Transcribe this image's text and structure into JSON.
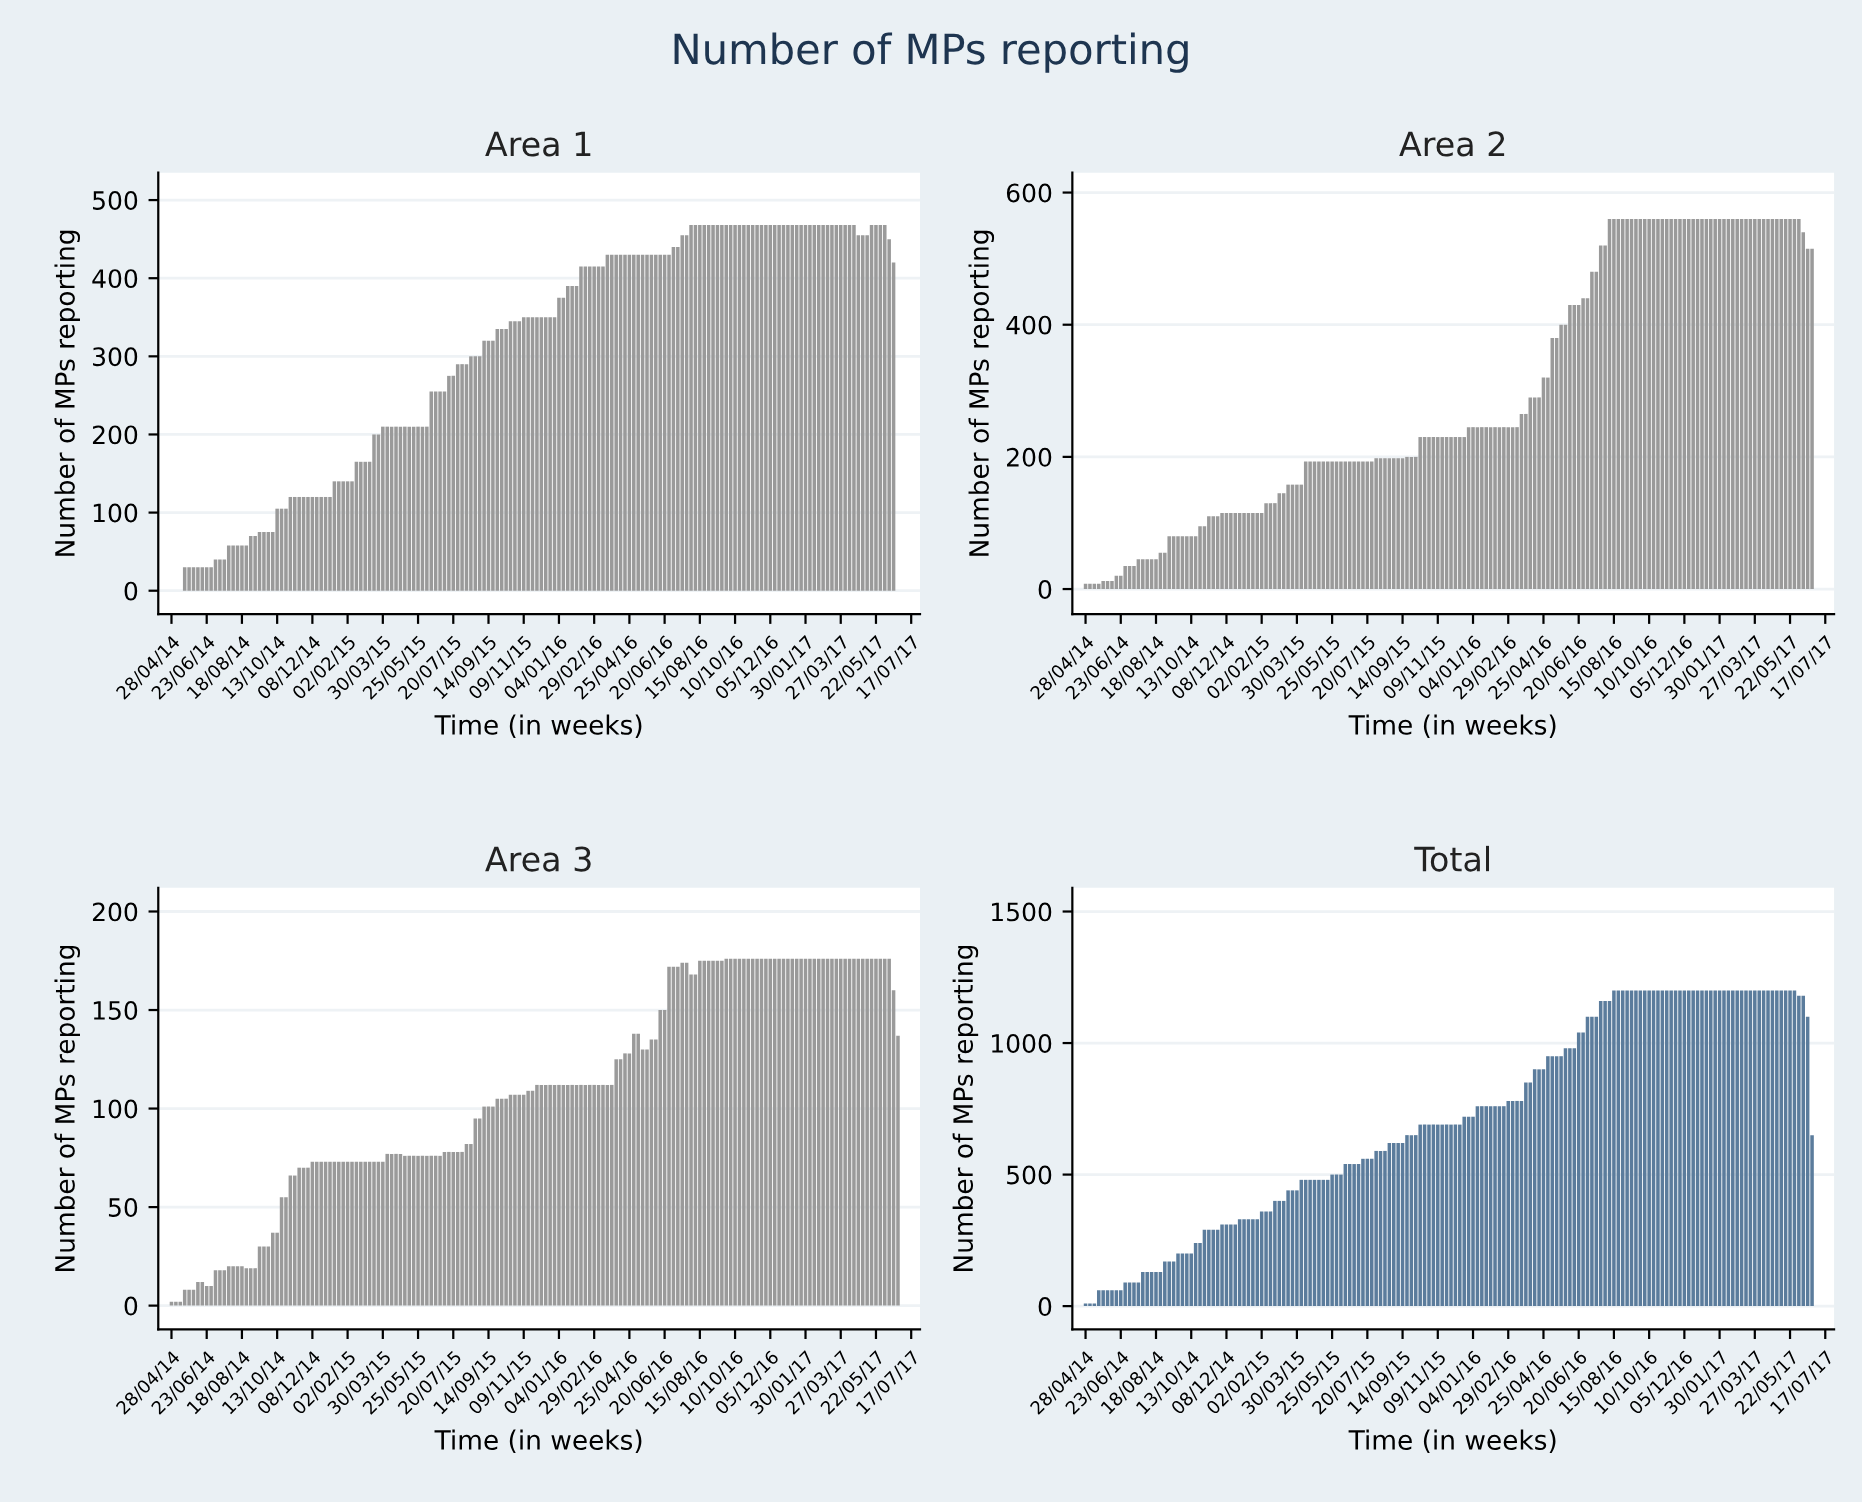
{
  "chart_data": [
    {
      "type": "bar",
      "title": "Area 1",
      "xlabel": "Time (in weeks)",
      "ylabel": "Number of MPs reporting",
      "annotations": [
        "Number of MPs reporting"
      ],
      "color": "#9a9a9a",
      "grid": "y",
      "ylim": [
        -30,
        535
      ],
      "yticks": [
        0,
        100,
        200,
        300,
        400,
        500
      ],
      "categories": [
        "28/04/14",
        null,
        null,
        null,
        null,
        null,
        null,
        null,
        "23/06/14",
        null,
        null,
        null,
        null,
        null,
        null,
        null,
        "18/08/14",
        null,
        null,
        null,
        null,
        null,
        null,
        null,
        "13/10/14",
        null,
        null,
        null,
        null,
        null,
        null,
        null,
        "08/12/14",
        null,
        null,
        null,
        null,
        null,
        null,
        null,
        "02/02/15",
        null,
        null,
        null,
        null,
        null,
        null,
        null,
        "30/03/15",
        null,
        null,
        null,
        null,
        null,
        null,
        null,
        "25/05/15",
        null,
        null,
        null,
        null,
        null,
        null,
        null,
        "20/07/15",
        null,
        null,
        null,
        null,
        null,
        null,
        null,
        "14/09/15",
        null,
        null,
        null,
        null,
        null,
        null,
        null,
        "09/11/15",
        null,
        null,
        null,
        null,
        null,
        null,
        null,
        "04/01/16",
        null,
        null,
        null,
        null,
        null,
        null,
        null,
        "29/02/16",
        null,
        null,
        null,
        null,
        null,
        null,
        null,
        "25/04/16",
        null,
        null,
        null,
        null,
        null,
        null,
        null,
        "20/06/16",
        null,
        null,
        null,
        null,
        null,
        null,
        null,
        "15/08/16",
        null,
        null,
        null,
        null,
        null,
        null,
        null,
        "10/10/16",
        null,
        null,
        null,
        null,
        null,
        null,
        null,
        "05/12/16",
        null,
        null,
        null,
        null,
        null,
        null,
        null,
        "30/01/17",
        null,
        null,
        null,
        null,
        null,
        null,
        null,
        "27/03/17",
        null,
        null,
        null,
        null,
        null,
        null,
        null,
        "22/05/17",
        null,
        null,
        null,
        null,
        null,
        null,
        null,
        "17/07/17"
      ],
      "values": [
        null,
        null,
        null,
        30,
        30,
        30,
        30,
        30,
        30,
        30,
        40,
        40,
        40,
        58,
        58,
        58,
        58,
        58,
        70,
        70,
        75,
        75,
        75,
        75,
        105,
        105,
        105,
        120,
        120,
        120,
        120,
        120,
        120,
        120,
        120,
        120,
        120,
        140,
        140,
        140,
        140,
        140,
        165,
        165,
        165,
        165,
        200,
        200,
        210,
        210,
        210,
        210,
        210,
        210,
        210,
        210,
        210,
        210,
        210,
        255,
        255,
        255,
        255,
        275,
        275,
        290,
        290,
        290,
        300,
        300,
        300,
        320,
        320,
        320,
        335,
        335,
        335,
        345,
        345,
        345,
        350,
        350,
        350,
        350,
        350,
        350,
        350,
        350,
        375,
        375,
        390,
        390,
        390,
        415,
        415,
        415,
        415,
        415,
        415,
        430,
        430,
        430,
        430,
        430,
        430,
        430,
        430,
        430,
        430,
        430,
        430,
        430,
        430,
        430,
        440,
        440,
        455,
        455,
        468,
        468,
        468,
        468,
        468,
        468,
        468,
        468,
        468,
        468,
        468,
        468,
        468,
        468,
        468,
        468,
        468,
        468,
        468,
        468,
        468,
        468,
        468,
        468,
        468,
        468,
        468,
        468,
        468,
        468,
        468,
        468,
        468,
        468,
        468,
        468,
        468,
        468,
        455,
        455,
        455,
        468,
        468,
        468,
        468,
        450,
        420,
        null,
        null,
        null,
        null
      ]
    },
    {
      "type": "bar",
      "title": "Area 2",
      "xlabel": "Time (in weeks)",
      "ylabel": "Number of MPs reporting",
      "color": "#9a9a9a",
      "grid": "y",
      "ylim": [
        -38,
        630
      ],
      "yticks": [
        0,
        200,
        400,
        600
      ],
      "categories": [
        "28/04/14",
        null,
        null,
        null,
        null,
        null,
        null,
        null,
        "23/06/14",
        null,
        null,
        null,
        null,
        null,
        null,
        null,
        "18/08/14",
        null,
        null,
        null,
        null,
        null,
        null,
        null,
        "13/10/14",
        null,
        null,
        null,
        null,
        null,
        null,
        null,
        "08/12/14",
        null,
        null,
        null,
        null,
        null,
        null,
        null,
        "02/02/15",
        null,
        null,
        null,
        null,
        null,
        null,
        null,
        "30/03/15",
        null,
        null,
        null,
        null,
        null,
        null,
        null,
        "25/05/15",
        null,
        null,
        null,
        null,
        null,
        null,
        null,
        "20/07/15",
        null,
        null,
        null,
        null,
        null,
        null,
        null,
        "14/09/15",
        null,
        null,
        null,
        null,
        null,
        null,
        null,
        "09/11/15",
        null,
        null,
        null,
        null,
        null,
        null,
        null,
        "04/01/16",
        null,
        null,
        null,
        null,
        null,
        null,
        null,
        "29/02/16",
        null,
        null,
        null,
        null,
        null,
        null,
        null,
        "25/04/16",
        null,
        null,
        null,
        null,
        null,
        null,
        null,
        "20/06/16",
        null,
        null,
        null,
        null,
        null,
        null,
        null,
        "15/08/16",
        null,
        null,
        null,
        null,
        null,
        null,
        null,
        "10/10/16",
        null,
        null,
        null,
        null,
        null,
        null,
        null,
        "05/12/16",
        null,
        null,
        null,
        null,
        null,
        null,
        null,
        "30/01/17",
        null,
        null,
        null,
        null,
        null,
        null,
        null,
        "27/03/17",
        null,
        null,
        null,
        null,
        null,
        null,
        null,
        "22/05/17",
        null,
        null,
        null,
        null,
        null,
        null,
        null,
        "17/07/17"
      ],
      "values": [
        8,
        8,
        8,
        8,
        12,
        12,
        12,
        20,
        20,
        35,
        35,
        35,
        45,
        45,
        45,
        45,
        45,
        55,
        55,
        80,
        80,
        80,
        80,
        80,
        80,
        80,
        95,
        95,
        110,
        110,
        110,
        115,
        115,
        115,
        115,
        115,
        115,
        115,
        115,
        115,
        115,
        130,
        130,
        130,
        145,
        145,
        158,
        158,
        158,
        158,
        193,
        193,
        193,
        193,
        193,
        193,
        193,
        193,
        193,
        193,
        193,
        193,
        193,
        193,
        193,
        193,
        198,
        198,
        198,
        198,
        198,
        198,
        198,
        200,
        200,
        200,
        230,
        230,
        230,
        230,
        230,
        230,
        230,
        230,
        230,
        230,
        230,
        245,
        245,
        245,
        245,
        245,
        245,
        245,
        245,
        245,
        245,
        245,
        245,
        265,
        265,
        290,
        290,
        290,
        320,
        320,
        380,
        380,
        400,
        400,
        430,
        430,
        430,
        440,
        440,
        480,
        480,
        520,
        520,
        560,
        560,
        560,
        560,
        560,
        560,
        560,
        560,
        560,
        560,
        560,
        560,
        560,
        560,
        560,
        560,
        560,
        560,
        560,
        560,
        560,
        560,
        560,
        560,
        560,
        560,
        560,
        560,
        560,
        560,
        560,
        560,
        560,
        560,
        560,
        560,
        560,
        560,
        560,
        560,
        560,
        560,
        560,
        560,
        540,
        515,
        515,
        null,
        null,
        null
      ]
    },
    {
      "type": "bar",
      "title": "Area 3",
      "xlabel": "Time (in weeks)",
      "ylabel": "Number of MPs reporting",
      "color": "#9a9a9a",
      "grid": "y",
      "ylim": [
        -12,
        212
      ],
      "yticks": [
        0,
        50,
        100,
        150,
        200
      ],
      "categories": [
        "28/04/14",
        null,
        null,
        null,
        null,
        null,
        null,
        null,
        "23/06/14",
        null,
        null,
        null,
        null,
        null,
        null,
        null,
        "18/08/14",
        null,
        null,
        null,
        null,
        null,
        null,
        null,
        "13/10/14",
        null,
        null,
        null,
        null,
        null,
        null,
        null,
        "08/12/14",
        null,
        null,
        null,
        null,
        null,
        null,
        null,
        "02/02/15",
        null,
        null,
        null,
        null,
        null,
        null,
        null,
        "30/03/15",
        null,
        null,
        null,
        null,
        null,
        null,
        null,
        "25/05/15",
        null,
        null,
        null,
        null,
        null,
        null,
        null,
        "20/07/15",
        null,
        null,
        null,
        null,
        null,
        null,
        null,
        "14/09/15",
        null,
        null,
        null,
        null,
        null,
        null,
        null,
        "09/11/15",
        null,
        null,
        null,
        null,
        null,
        null,
        null,
        "04/01/16",
        null,
        null,
        null,
        null,
        null,
        null,
        null,
        "29/02/16",
        null,
        null,
        null,
        null,
        null,
        null,
        null,
        "25/04/16",
        null,
        null,
        null,
        null,
        null,
        null,
        null,
        "20/06/16",
        null,
        null,
        null,
        null,
        null,
        null,
        null,
        "15/08/16",
        null,
        null,
        null,
        null,
        null,
        null,
        null,
        "10/10/16",
        null,
        null,
        null,
        null,
        null,
        null,
        null,
        "05/12/16",
        null,
        null,
        null,
        null,
        null,
        null,
        null,
        "30/01/17",
        null,
        null,
        null,
        null,
        null,
        null,
        null,
        "27/03/17",
        null,
        null,
        null,
        null,
        null,
        null,
        null,
        "22/05/17",
        null,
        null,
        null,
        null,
        null,
        null,
        null,
        "17/07/17"
      ],
      "values": [
        2,
        2,
        2,
        8,
        8,
        8,
        12,
        12,
        10,
        10,
        18,
        18,
        18,
        20,
        20,
        20,
        20,
        19,
        19,
        19,
        30,
        30,
        30,
        37,
        37,
        55,
        55,
        66,
        66,
        70,
        70,
        70,
        73,
        73,
        73,
        73,
        73,
        73,
        73,
        73,
        73,
        73,
        73,
        73,
        73,
        73,
        73,
        73,
        73,
        77,
        77,
        77,
        77,
        76,
        76,
        76,
        76,
        76,
        76,
        76,
        76,
        76,
        78,
        78,
        78,
        78,
        78,
        82,
        82,
        95,
        95,
        101,
        101,
        101,
        105,
        105,
        105,
        107,
        107,
        107,
        107,
        109,
        109,
        112,
        112,
        112,
        112,
        112,
        112,
        112,
        112,
        112,
        112,
        112,
        112,
        112,
        112,
        112,
        112,
        112,
        112,
        125,
        125,
        128,
        128,
        138,
        138,
        130,
        130,
        135,
        135,
        150,
        150,
        172,
        172,
        172,
        174,
        174,
        168,
        168,
        175,
        175,
        175,
        175,
        175,
        175,
        176,
        176,
        176,
        176,
        176,
        176,
        176,
        176,
        176,
        176,
        176,
        176,
        176,
        176,
        176,
        176,
        176,
        176,
        176,
        176,
        176,
        176,
        176,
        176,
        176,
        176,
        176,
        176,
        176,
        176,
        176,
        176,
        176,
        176,
        176,
        176,
        176,
        176,
        160,
        137,
        null,
        null,
        null
      ]
    },
    {
      "type": "bar",
      "title": "Total",
      "xlabel": "Time (in weeks)",
      "ylabel": "Number of MPs reporting",
      "color": "#5b7c9c",
      "grid": "y",
      "ylim": [
        -88,
        1590
      ],
      "yticks": [
        0,
        500,
        1000,
        1500
      ],
      "categories": [
        "28/04/14",
        null,
        null,
        null,
        null,
        null,
        null,
        null,
        "23/06/14",
        null,
        null,
        null,
        null,
        null,
        null,
        null,
        "18/08/14",
        null,
        null,
        null,
        null,
        null,
        null,
        null,
        "13/10/14",
        null,
        null,
        null,
        null,
        null,
        null,
        null,
        "08/12/14",
        null,
        null,
        null,
        null,
        null,
        null,
        null,
        "02/02/15",
        null,
        null,
        null,
        null,
        null,
        null,
        null,
        "30/03/15",
        null,
        null,
        null,
        null,
        null,
        null,
        null,
        "25/05/15",
        null,
        null,
        null,
        null,
        null,
        null,
        null,
        "20/07/15",
        null,
        null,
        null,
        null,
        null,
        null,
        null,
        "14/09/15",
        null,
        null,
        null,
        null,
        null,
        null,
        null,
        "09/11/15",
        null,
        null,
        null,
        null,
        null,
        null,
        null,
        "04/01/16",
        null,
        null,
        null,
        null,
        null,
        null,
        null,
        "29/02/16",
        null,
        null,
        null,
        null,
        null,
        null,
        null,
        "25/04/16",
        null,
        null,
        null,
        null,
        null,
        null,
        null,
        "20/06/16",
        null,
        null,
        null,
        null,
        null,
        null,
        null,
        "15/08/16",
        null,
        null,
        null,
        null,
        null,
        null,
        null,
        "10/10/16",
        null,
        null,
        null,
        null,
        null,
        null,
        null,
        "05/12/16",
        null,
        null,
        null,
        null,
        null,
        null,
        null,
        "30/01/17",
        null,
        null,
        null,
        null,
        null,
        null,
        null,
        "27/03/17",
        null,
        null,
        null,
        null,
        null,
        null,
        null,
        "22/05/17",
        null,
        null,
        null,
        null,
        null,
        null,
        null,
        "17/07/17"
      ],
      "values": [
        10,
        10,
        10,
        60,
        60,
        60,
        60,
        60,
        60,
        90,
        90,
        90,
        90,
        130,
        130,
        130,
        130,
        130,
        170,
        170,
        170,
        200,
        200,
        200,
        200,
        240,
        240,
        290,
        290,
        290,
        290,
        310,
        310,
        310,
        310,
        330,
        330,
        330,
        330,
        330,
        360,
        360,
        360,
        400,
        400,
        400,
        440,
        440,
        440,
        480,
        480,
        480,
        480,
        480,
        480,
        480,
        500,
        500,
        500,
        540,
        540,
        540,
        540,
        560,
        560,
        560,
        590,
        590,
        590,
        620,
        620,
        620,
        620,
        650,
        650,
        650,
        690,
        690,
        690,
        690,
        690,
        690,
        690,
        690,
        690,
        690,
        720,
        720,
        720,
        760,
        760,
        760,
        760,
        760,
        760,
        760,
        780,
        780,
        780,
        780,
        850,
        850,
        900,
        900,
        900,
        950,
        950,
        950,
        950,
        980,
        980,
        980,
        1040,
        1040,
        1100,
        1100,
        1100,
        1160,
        1160,
        1160,
        1200,
        1200,
        1200,
        1200,
        1200,
        1200,
        1200,
        1200,
        1200,
        1200,
        1200,
        1200,
        1200,
        1200,
        1200,
        1200,
        1200,
        1200,
        1200,
        1200,
        1200,
        1200,
        1200,
        1200,
        1200,
        1200,
        1200,
        1200,
        1200,
        1200,
        1200,
        1200,
        1200,
        1200,
        1200,
        1200,
        1200,
        1200,
        1200,
        1200,
        1200,
        1200,
        1180,
        1180,
        1100,
        650,
        null,
        null,
        null
      ]
    }
  ]
}
